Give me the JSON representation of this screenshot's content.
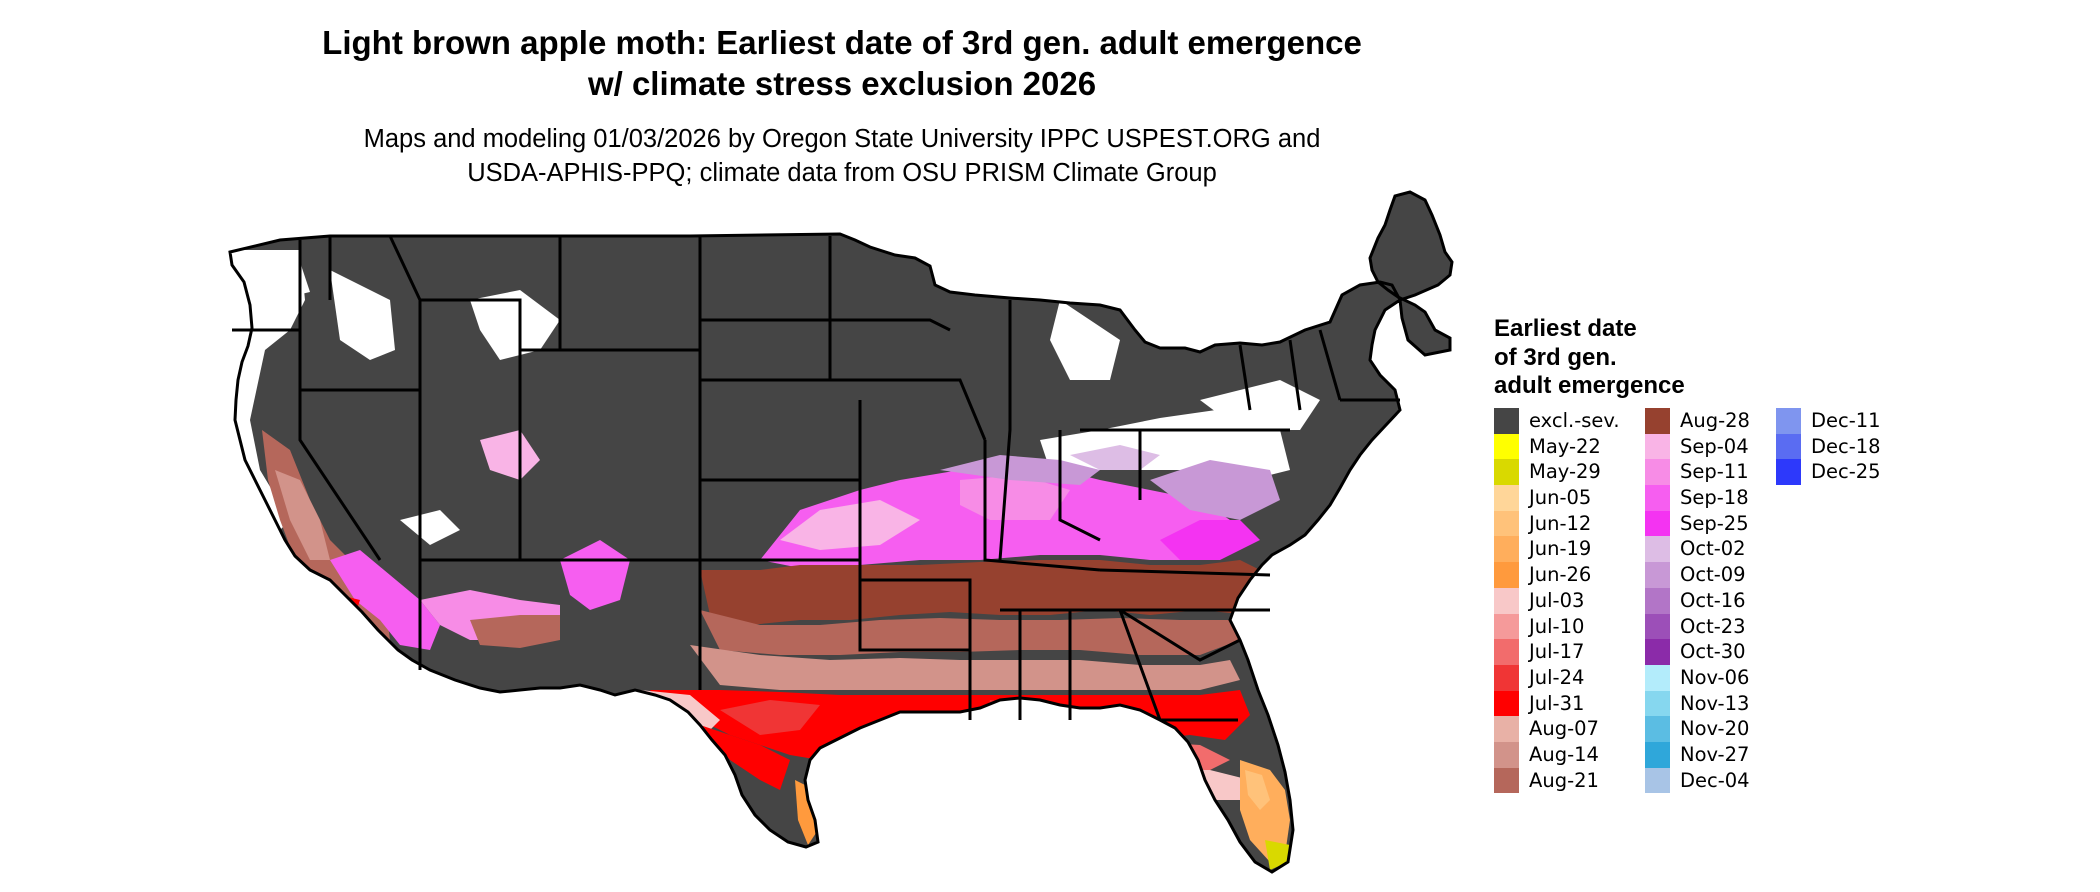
{
  "title_line1": "Light brown apple moth: Earliest date of 3rd gen. adult emergence",
  "title_line2": "w/ climate stress exclusion 2026",
  "subtitle_line1": "Maps and modeling 01/03/2026 by Oregon State University IPPC USPEST.ORG and",
  "subtitle_line2": "USDA-APHIS-PPQ; climate data from OSU PRISM Climate Group",
  "legend": {
    "title_lines": [
      "Earliest date",
      "of 3rd gen.",
      "adult emergence"
    ],
    "columns": [
      [
        {
          "label": "excl.-sev.",
          "color": "#454545"
        },
        {
          "label": "May-22",
          "color": "#ffff00"
        },
        {
          "label": "May-29",
          "color": "#d9d900"
        },
        {
          "label": "Jun-05",
          "color": "#ffd699"
        },
        {
          "label": "Jun-12",
          "color": "#ffc27a"
        },
        {
          "label": "Jun-19",
          "color": "#ffae5c"
        },
        {
          "label": "Jun-26",
          "color": "#ff9a3d"
        },
        {
          "label": "Jul-03",
          "color": "#f8c8c8"
        },
        {
          "label": "Jul-10",
          "color": "#f59a9a"
        },
        {
          "label": "Jul-17",
          "color": "#f26c6c"
        },
        {
          "label": "Jul-24",
          "color": "#f03535"
        },
        {
          "label": "Jul-31",
          "color": "#ff0000"
        },
        {
          "label": "Aug-07",
          "color": "#e8b1a6"
        },
        {
          "label": "Aug-14",
          "color": "#d2938a"
        },
        {
          "label": "Aug-21",
          "color": "#b5675b"
        }
      ],
      [
        {
          "label": "Aug-28",
          "color": "#96412f"
        },
        {
          "label": "Sep-04",
          "color": "#f9b4e6"
        },
        {
          "label": "Sep-11",
          "color": "#f78ce6"
        },
        {
          "label": "Sep-18",
          "color": "#f65ef0"
        },
        {
          "label": "Sep-25",
          "color": "#f433f2"
        },
        {
          "label": "Oct-02",
          "color": "#ddbde5"
        },
        {
          "label": "Oct-09",
          "color": "#c898d6"
        },
        {
          "label": "Oct-16",
          "color": "#b275c7"
        },
        {
          "label": "Oct-23",
          "color": "#9c4fb8"
        },
        {
          "label": "Oct-30",
          "color": "#8b2ba9"
        },
        {
          "label": "Nov-06",
          "color": "#b3ecfb"
        },
        {
          "label": "Nov-13",
          "color": "#86d7ef"
        },
        {
          "label": "Nov-20",
          "color": "#5bbde3"
        },
        {
          "label": "Nov-27",
          "color": "#2fa7da"
        },
        {
          "label": "Dec-04",
          "color": "#a8c4e6"
        }
      ],
      [
        {
          "label": "Dec-11",
          "color": "#7f95ef"
        },
        {
          "label": "Dec-18",
          "color": "#5a6cf2"
        },
        {
          "label": "Dec-25",
          "color": "#2d39fb"
        }
      ]
    ]
  }
}
